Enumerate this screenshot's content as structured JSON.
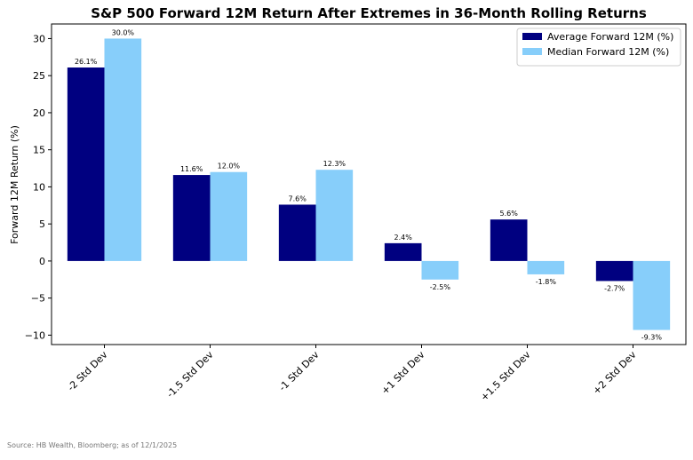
{
  "chart_data": {
    "type": "bar",
    "title": "S&P 500 Forward 12M Return After Extremes in 36-Month Rolling Returns",
    "y_label": "Forward 12M Return (%)",
    "categories": [
      "-2 Std Dev",
      "-1.5 Std Dev",
      "-1 Std Dev",
      "+1 Std Dev",
      "+1.5 Std Dev",
      "+2 Std Dev"
    ],
    "series": [
      {
        "name": "Average Forward 12M (%)",
        "color": "#000080",
        "values": [
          26.1,
          11.6,
          7.6,
          2.4,
          5.6,
          -2.7
        ],
        "value_labels": [
          "26.1%",
          "11.6%",
          "7.6%",
          "2.4%",
          "5.6%",
          "-2.7%"
        ]
      },
      {
        "name": "Median Forward 12M (%)",
        "color": "#87cefa",
        "values": [
          30.0,
          12.0,
          12.3,
          -2.5,
          -1.8,
          -9.3
        ],
        "value_labels": [
          "30.0%",
          "12.0%",
          "12.3%",
          "-2.5%",
          "-1.8%",
          "-9.3%"
        ]
      }
    ],
    "ylim": [
      -11.27,
      31.97
    ],
    "yticks": [
      {
        "value": -10,
        "label": "−10"
      },
      {
        "value": -5,
        "label": "−5"
      },
      0,
      5,
      10,
      15,
      20,
      25,
      30
    ],
    "legend": "upper right",
    "source": "Source: HB Wealth, Bloomberg; as of 12/1/2025"
  }
}
